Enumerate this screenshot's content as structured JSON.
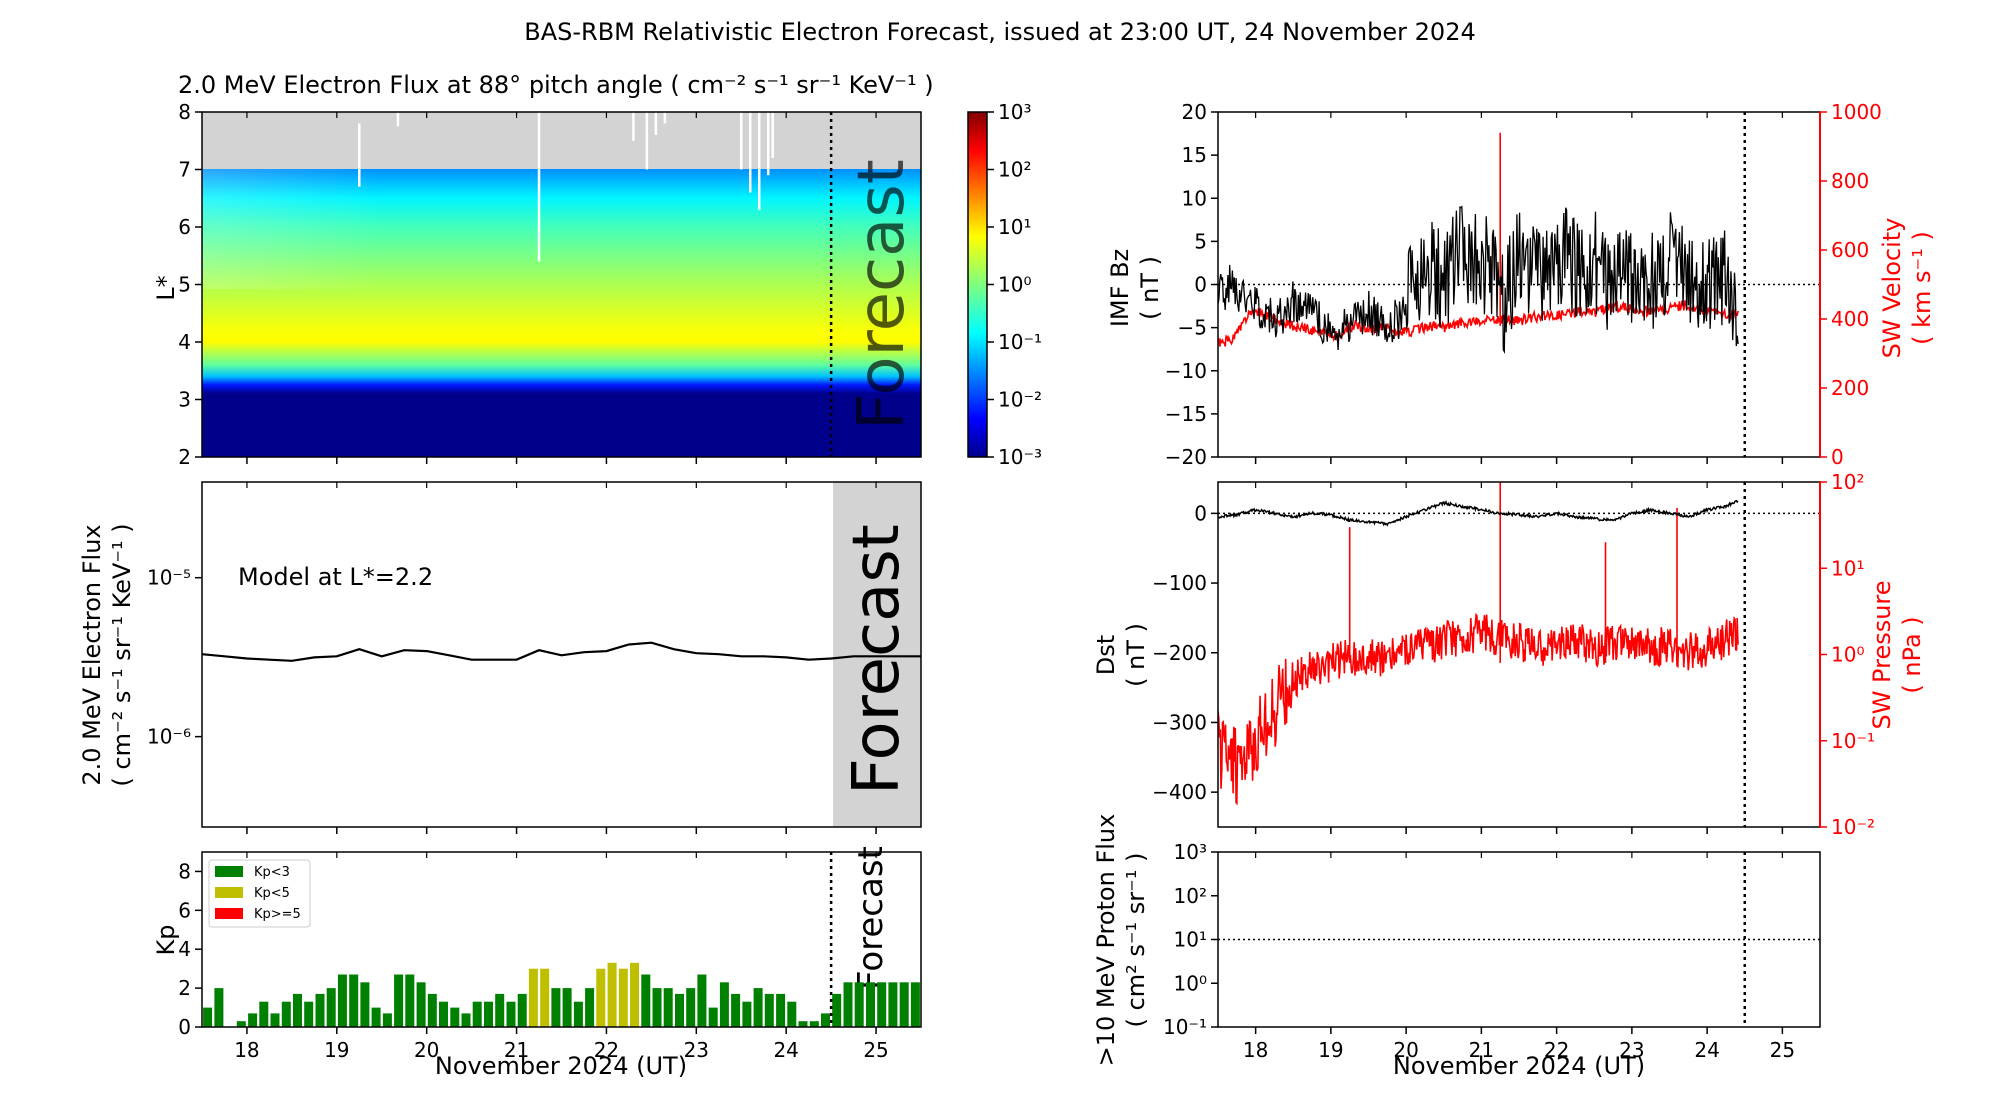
{
  "title": "BAS-RBM Relativistic Electron Forecast, issued at 23:00 UT, 24 November 2024",
  "colors": {
    "red": "#ff0000",
    "green": "#008000",
    "olive": "#bfbf00",
    "forecast_grey": "#d3d3d3",
    "low_flux": "#00008b"
  },
  "chart_data": [
    {
      "type": "heatmap",
      "title": "2.0 MeV Electron Flux at 88° pitch angle ( cm⁻² s⁻¹ sr⁻¹ KeV⁻¹ )",
      "ylabel": "L*",
      "ylim": [
        2,
        8
      ],
      "yticks": [
        "2",
        "3",
        "4",
        "5",
        "6",
        "7",
        "8"
      ],
      "xlim": [
        17.5,
        25.5
      ],
      "forecast_start": 24.5,
      "watermark": "Forecast",
      "colorbar": {
        "scale": "log",
        "min": -3,
        "max": 3,
        "ticks": [
          "10⁻³",
          "10⁻²",
          "10⁻¹",
          "10⁰",
          "10¹",
          "10²",
          "10³"
        ]
      },
      "profile": {
        "L": [
          2,
          3.1,
          3.25,
          3.4,
          3.6,
          4,
          4.2,
          5,
          6,
          6.5,
          7
        ],
        "log_flux": [
          -3,
          -3,
          -2.2,
          -1.2,
          -0.2,
          0.85,
          0.8,
          0.3,
          -0.4,
          -0.9,
          -1.5
        ]
      },
      "no_data_above_L": 7
    },
    {
      "type": "line",
      "ylabel": "2.0 MeV Electron Flux",
      "ylabel_units": "( cm⁻² s⁻¹ sr⁻¹ KeV⁻¹ )",
      "annotation": "Model at L*=2.2",
      "yscale": "log",
      "ylim": [
        2.7e-07,
        4e-05
      ],
      "yticks": [
        "10⁻⁵",
        "10⁻⁶"
      ],
      "watermark": "Forecast",
      "x": [
        17.5,
        17.75,
        18,
        18.25,
        18.5,
        18.75,
        19,
        19.25,
        19.5,
        19.75,
        20,
        20.25,
        20.5,
        20.75,
        21,
        21.25,
        21.5,
        21.75,
        22,
        22.25,
        22.5,
        22.75,
        23,
        23.25,
        23.5,
        23.75,
        24,
        24.25,
        24.5,
        24.75,
        25,
        25.5
      ],
      "y": [
        3.3e-06,
        3.2e-06,
        3.1e-06,
        3.05e-06,
        3e-06,
        3.15e-06,
        3.2e-06,
        3.55e-06,
        3.2e-06,
        3.5e-06,
        3.45e-06,
        3.25e-06,
        3.05e-06,
        3.05e-06,
        3.05e-06,
        3.5e-06,
        3.25e-06,
        3.4e-06,
        3.45e-06,
        3.8e-06,
        3.9e-06,
        3.55e-06,
        3.35e-06,
        3.3e-06,
        3.2e-06,
        3.2e-06,
        3.15e-06,
        3.05e-06,
        3.1e-06,
        3.2e-06,
        3.2e-06,
        3.2e-06
      ]
    },
    {
      "type": "bar",
      "ylabel": "Kp",
      "ylim": [
        0,
        9
      ],
      "yticks": [
        "0",
        "2",
        "4",
        "6",
        "8"
      ],
      "xlabel": "November 2024 (UT)",
      "xticks": [
        "18",
        "19",
        "20",
        "21",
        "22",
        "23",
        "24",
        "25"
      ],
      "legend": [
        "Kp<3",
        "Kp<5",
        "Kp>=5"
      ],
      "watermark": "Forecast",
      "bin_days": 0.125,
      "x_start": 17.5,
      "values": [
        1.0,
        2.0,
        0.0,
        0.3,
        0.7,
        1.3,
        0.7,
        1.3,
        1.7,
        1.3,
        1.7,
        2.0,
        2.7,
        2.7,
        2.3,
        1.0,
        0.7,
        2.7,
        2.7,
        2.3,
        1.7,
        1.3,
        1.0,
        0.7,
        1.3,
        1.3,
        1.7,
        1.3,
        1.7,
        3.0,
        3.0,
        2.0,
        2.0,
        1.3,
        2.0,
        3.0,
        3.3,
        3.0,
        3.3,
        2.7,
        2.0,
        2.0,
        1.7,
        2.0,
        2.7,
        1.0,
        2.3,
        1.7,
        1.3,
        2.0,
        1.7,
        1.7,
        1.3,
        0.3,
        0.3,
        0.7,
        1.7,
        2.3,
        2.3,
        2.3,
        2.3,
        2.3,
        2.3,
        2.3
      ]
    },
    {
      "type": "line",
      "ylabel": "IMF Bz",
      "ylabel_units": "( nT )",
      "ylim": [
        -20,
        20
      ],
      "yticks": [
        "−20",
        "−15",
        "−10",
        "−5",
        "0",
        "5",
        "10",
        "15",
        "20"
      ],
      "y2label": "SW Velocity",
      "y2label_units": "( km s⁻¹ )",
      "y2lim": [
        0,
        1000
      ],
      "y2ticks": [
        "0",
        "200",
        "400",
        "600",
        "800",
        "1000"
      ],
      "series": [
        {
          "x": [
            17.5,
            17.7,
            17.9,
            18.1,
            18.3,
            18.5,
            18.7,
            18.9,
            19.1,
            19.3,
            19.5,
            19.7,
            19.9,
            20.1,
            20.3,
            20.5,
            20.7,
            20.9,
            21.1,
            21.3,
            21.5,
            21.7,
            21.9,
            22.1,
            22.3,
            22.5,
            22.7,
            22.9,
            23.1,
            23.3,
            23.5,
            23.7,
            23.9,
            24.1,
            24.3,
            24.4
          ],
          "y": [
            -1,
            0,
            -2,
            -3,
            -4,
            -2,
            -3,
            -5,
            -6,
            -4,
            -3,
            -5,
            -4,
            0,
            2,
            0,
            4,
            3,
            2,
            -2,
            3,
            1,
            2,
            4,
            1,
            3,
            -1,
            2,
            1,
            0,
            3,
            2,
            -1,
            1,
            0,
            -3
          ]
        },
        {
          "x": [
            17.5,
            17.7,
            17.9,
            18.1,
            18.3,
            18.5,
            18.7,
            18.9,
            19.1,
            19.3,
            19.5,
            19.7,
            19.9,
            20.1,
            20.3,
            20.5,
            20.7,
            20.9,
            21.1,
            21.3,
            21.5,
            21.7,
            21.9,
            22.1,
            22.3,
            22.5,
            22.7,
            22.9,
            23.1,
            23.3,
            23.5,
            23.7,
            23.9,
            24.1,
            24.3,
            24.4
          ],
          "y": [
            330,
            340,
            410,
            420,
            390,
            380,
            370,
            360,
            350,
            380,
            370,
            380,
            360,
            365,
            380,
            375,
            385,
            390,
            395,
            400,
            395,
            405,
            410,
            415,
            420,
            420,
            430,
            435,
            420,
            425,
            430,
            440,
            430,
            420,
            410,
            420
          ]
        }
      ]
    },
    {
      "type": "line",
      "ylabel": "Dst",
      "ylabel_units": "( nT )",
      "ylim": [
        -450,
        45
      ],
      "yticks": [
        "−400",
        "−300",
        "−200",
        "−100",
        "0"
      ],
      "y2label": "SW Pressure",
      "y2label_units": "( nPa )",
      "y2scale": "log",
      "y2lim": [
        0.01,
        100
      ],
      "y2ticks": [
        "10⁻²",
        "10⁻¹",
        "10⁰",
        "10¹",
        "10²"
      ],
      "series": [
        {
          "x": [
            17.5,
            17.75,
            18,
            18.25,
            18.5,
            18.75,
            19,
            19.25,
            19.5,
            19.75,
            20,
            20.25,
            20.5,
            20.75,
            21,
            21.25,
            21.5,
            21.75,
            22,
            22.25,
            22.5,
            22.75,
            23,
            23.25,
            23.5,
            23.75,
            24,
            24.25,
            24.4
          ],
          "y": [
            -5,
            -2,
            5,
            0,
            -5,
            0,
            -2,
            -10,
            -12,
            -15,
            -5,
            5,
            15,
            10,
            5,
            0,
            -2,
            -5,
            0,
            -5,
            -8,
            -10,
            0,
            5,
            0,
            -5,
            5,
            10,
            18
          ]
        },
        {
          "x": [
            17.5,
            17.75,
            18,
            18.25,
            18.5,
            18.75,
            19,
            19.25,
            19.5,
            19.75,
            20,
            20.25,
            20.5,
            20.75,
            21,
            21.25,
            21.5,
            21.75,
            22,
            22.25,
            22.5,
            22.75,
            23,
            23.25,
            23.5,
            23.75,
            24,
            24.25,
            24.4
          ],
          "y": [
            0.08,
            0.05,
            0.1,
            0.2,
            0.5,
            0.7,
            0.8,
            0.9,
            1.0,
            0.9,
            1.1,
            1.2,
            1.5,
            1.6,
            1.8,
            1.6,
            1.4,
            1.2,
            1.3,
            1.4,
            1.2,
            1.3,
            1.4,
            1.2,
            1.3,
            1.1,
            1.2,
            1.5,
            1.8
          ]
        }
      ]
    },
    {
      "type": "line",
      "ylabel": ">10 MeV Proton Flux",
      "ylabel_units": "( cm² s⁻¹ sr⁻¹ )",
      "yscale": "log",
      "ylim": [
        0.1,
        1000
      ],
      "yticks": [
        "10⁻¹",
        "10⁰",
        "10¹",
        "10²",
        "10³"
      ],
      "threshold": 10,
      "xlabel": "November 2024 (UT)",
      "xticks": [
        "18",
        "19",
        "20",
        "21",
        "22",
        "23",
        "24",
        "25"
      ],
      "series": []
    }
  ]
}
